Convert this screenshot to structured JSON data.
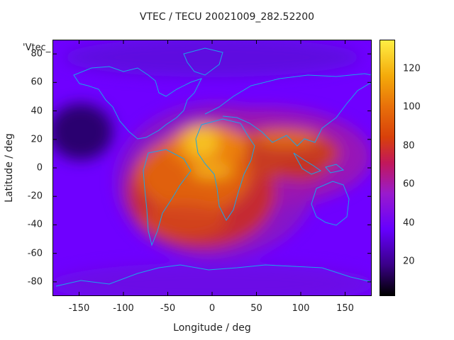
{
  "chart_data": {
    "type": "heatmap",
    "title": "VTEC / TECU 20021009_282.52200",
    "xlabel": "Longitude / deg",
    "ylabel": "Latitude / deg",
    "xlim": [
      -180,
      180
    ],
    "ylim": [
      -90,
      90
    ],
    "x_ticks": [
      "-150",
      "-100",
      "-50",
      "0",
      "50",
      "100",
      "150"
    ],
    "y_ticks": [
      "80",
      "60",
      "40",
      "20",
      "0",
      "-20",
      "-40",
      "-60",
      "-80"
    ],
    "colorbar": {
      "range": [
        2,
        135
      ],
      "ticks": [
        "120",
        "100",
        "80",
        "60",
        "40",
        "20"
      ]
    },
    "key_title": "'Vtec_",
    "values_description_grid": {
      "lon_step": 30,
      "lat_step": 15,
      "lons": [
        -180,
        -150,
        -120,
        -90,
        -60,
        -30,
        0,
        30,
        60,
        90,
        120,
        150,
        180
      ],
      "lats": [
        90,
        75,
        60,
        45,
        30,
        15,
        0,
        -15,
        -30,
        -45,
        -60,
        -75,
        -90
      ]
    }
  }
}
